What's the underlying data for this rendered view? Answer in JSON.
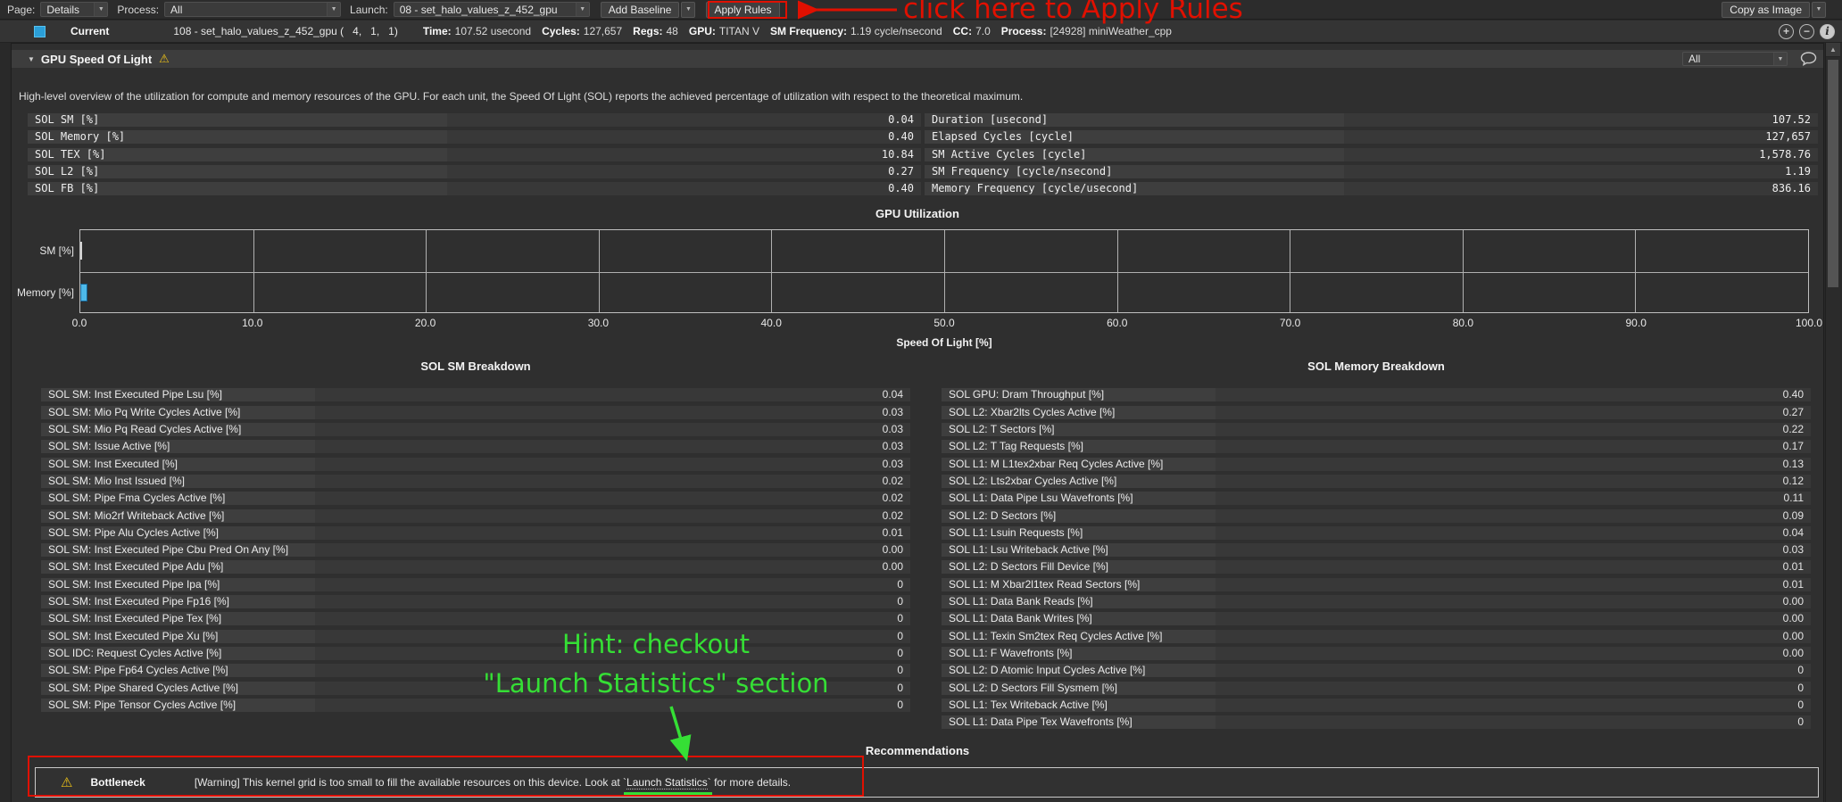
{
  "toolbar": {
    "page_label": "Page:",
    "page_value": "Details",
    "process_label": "Process:",
    "process_value": "All",
    "launch_label": "Launch:",
    "launch_value": "08 - set_halo_values_z_452_gpu",
    "add_baseline_label": "Add Baseline",
    "apply_rules_label": "Apply Rules",
    "copy_as_image_label": "Copy as Image"
  },
  "current": {
    "label": "Current",
    "kernel_name": "108 - set_halo_values_z_452_gpu (   4,   1,   1)",
    "stats": [
      {
        "label": "Time:",
        "value": "107.52 usecond"
      },
      {
        "label": "Cycles:",
        "value": "127,657"
      },
      {
        "label": "Regs:",
        "value": "48"
      },
      {
        "label": "GPU:",
        "value": "TITAN V"
      },
      {
        "label": "SM Frequency:",
        "value": "1.19 cycle/nsecond"
      },
      {
        "label": "CC:",
        "value": "7.0"
      },
      {
        "label": "Process:",
        "value": "[24928] miniWeather_cpp"
      }
    ]
  },
  "section": {
    "title": "GPU Speed Of Light",
    "filter_value": "All",
    "description": "High-level overview of the utilization for compute and memory resources of the GPU. For each unit, the Speed Of Light (SOL) reports the achieved percentage of utilization with respect to the theoretical maximum.",
    "sol_table_left": [
      {
        "label": "SOL SM [%]",
        "value": "0.04"
      },
      {
        "label": "SOL Memory [%]",
        "value": "0.40"
      },
      {
        "label": "SOL TEX [%]",
        "value": "10.84"
      },
      {
        "label": "SOL L2 [%]",
        "value": "0.27"
      },
      {
        "label": "SOL FB [%]",
        "value": "0.40"
      }
    ],
    "sol_table_right": [
      {
        "label": "Duration [usecond]",
        "value": "107.52"
      },
      {
        "label": "Elapsed Cycles [cycle]",
        "value": "127,657"
      },
      {
        "label": "SM Active Cycles [cycle]",
        "value": "1,578.76"
      },
      {
        "label": "SM Frequency [cycle/nsecond]",
        "value": "1.19"
      },
      {
        "label": "Memory Frequency [cycle/usecond]",
        "value": "836.16"
      }
    ]
  },
  "chart_data": {
    "type": "bar",
    "orientation": "horizontal",
    "title": "GPU Utilization",
    "categories": [
      "SM [%]",
      "Memory [%]"
    ],
    "values": [
      0.04,
      0.4
    ],
    "xlabel": "Speed Of Light [%]",
    "xlim": [
      0,
      100
    ],
    "xticks": [
      "0.0",
      "10.0",
      "20.0",
      "30.0",
      "40.0",
      "50.0",
      "60.0",
      "70.0",
      "80.0",
      "90.0",
      "100.0"
    ],
    "grid": true,
    "legend": false,
    "bar_color": "#4db9ea"
  },
  "sm_breakdown": {
    "title": "SOL SM Breakdown",
    "rows": [
      {
        "label": "SOL SM: Inst Executed Pipe Lsu [%]",
        "value": "0.04"
      },
      {
        "label": "SOL SM: Mio Pq Write Cycles Active [%]",
        "value": "0.03"
      },
      {
        "label": "SOL SM: Mio Pq Read Cycles Active [%]",
        "value": "0.03"
      },
      {
        "label": "SOL SM: Issue Active [%]",
        "value": "0.03"
      },
      {
        "label": "SOL SM: Inst Executed [%]",
        "value": "0.03"
      },
      {
        "label": "SOL SM: Mio Inst Issued [%]",
        "value": "0.02"
      },
      {
        "label": "SOL SM: Pipe Fma Cycles Active [%]",
        "value": "0.02"
      },
      {
        "label": "SOL SM: Mio2rf Writeback Active [%]",
        "value": "0.02"
      },
      {
        "label": "SOL SM: Pipe Alu Cycles Active [%]",
        "value": "0.01"
      },
      {
        "label": "SOL SM: Inst Executed Pipe Cbu Pred On Any [%]",
        "value": "0.00"
      },
      {
        "label": "SOL SM: Inst Executed Pipe Adu [%]",
        "value": "0.00"
      },
      {
        "label": "SOL SM: Inst Executed Pipe Ipa [%]",
        "value": "0"
      },
      {
        "label": "SOL SM: Inst Executed Pipe Fp16 [%]",
        "value": "0"
      },
      {
        "label": "SOL SM: Inst Executed Pipe Tex [%]",
        "value": "0"
      },
      {
        "label": "SOL SM: Inst Executed Pipe Xu [%]",
        "value": "0"
      },
      {
        "label": "SOL IDC: Request Cycles Active [%]",
        "value": "0"
      },
      {
        "label": "SOL SM: Pipe Fp64 Cycles Active [%]",
        "value": "0"
      },
      {
        "label": "SOL SM: Pipe Shared Cycles Active [%]",
        "value": "0"
      },
      {
        "label": "SOL SM: Pipe Tensor Cycles Active [%]",
        "value": "0"
      }
    ]
  },
  "memory_breakdown": {
    "title": "SOL Memory Breakdown",
    "rows": [
      {
        "label": "SOL GPU: Dram Throughput [%]",
        "value": "0.40"
      },
      {
        "label": "SOL L2: Xbar2lts Cycles Active [%]",
        "value": "0.27"
      },
      {
        "label": "SOL L2: T Sectors [%]",
        "value": "0.22"
      },
      {
        "label": "SOL L2: T Tag Requests [%]",
        "value": "0.17"
      },
      {
        "label": "SOL L1: M L1tex2xbar Req Cycles Active [%]",
        "value": "0.13"
      },
      {
        "label": "SOL L2: Lts2xbar Cycles Active [%]",
        "value": "0.12"
      },
      {
        "label": "SOL L1: Data Pipe Lsu Wavefronts [%]",
        "value": "0.11"
      },
      {
        "label": "SOL L2: D Sectors [%]",
        "value": "0.09"
      },
      {
        "label": "SOL L1: Lsuin Requests [%]",
        "value": "0.04"
      },
      {
        "label": "SOL L1: Lsu Writeback Active [%]",
        "value": "0.03"
      },
      {
        "label": "SOL L2: D Sectors Fill Device [%]",
        "value": "0.01"
      },
      {
        "label": "SOL L1: M Xbar2l1tex Read Sectors [%]",
        "value": "0.01"
      },
      {
        "label": "SOL L1: Data Bank Reads [%]",
        "value": "0.00"
      },
      {
        "label": "SOL L1: Data Bank Writes [%]",
        "value": "0.00"
      },
      {
        "label": "SOL L1: Texin Sm2tex Req Cycles Active [%]",
        "value": "0.00"
      },
      {
        "label": "SOL L1: F Wavefronts [%]",
        "value": "0.00"
      },
      {
        "label": "SOL L2: D Atomic Input Cycles Active [%]",
        "value": "0"
      },
      {
        "label": "SOL L2: D Sectors Fill Sysmem [%]",
        "value": "0"
      },
      {
        "label": "SOL L1: Tex Writeback Active [%]",
        "value": "0"
      },
      {
        "label": "SOL L1: Data Pipe Tex Wavefronts [%]",
        "value": "0"
      }
    ]
  },
  "recommendations": {
    "title": "Recommendations",
    "bottleneck_label": "Bottleneck",
    "message_pre": "[Warning] This kernel grid is too small to fill the available resources on this device. Look at `",
    "message_link": "Launch Statistics",
    "message_post": "` for more details."
  },
  "annotations": {
    "apply_rules_note": "click here to Apply Rules",
    "hint_line1": "Hint: checkout",
    "hint_line2": "\"Launch Statistics\" section",
    "red_color": "#e01000",
    "green_color": "#35df35"
  },
  "glyphs": {
    "chevron_down": "▼",
    "section_caret": "▼",
    "warning": "⚠",
    "scroll_up": "▲",
    "plus": "+",
    "minus": "−",
    "info": "i"
  }
}
